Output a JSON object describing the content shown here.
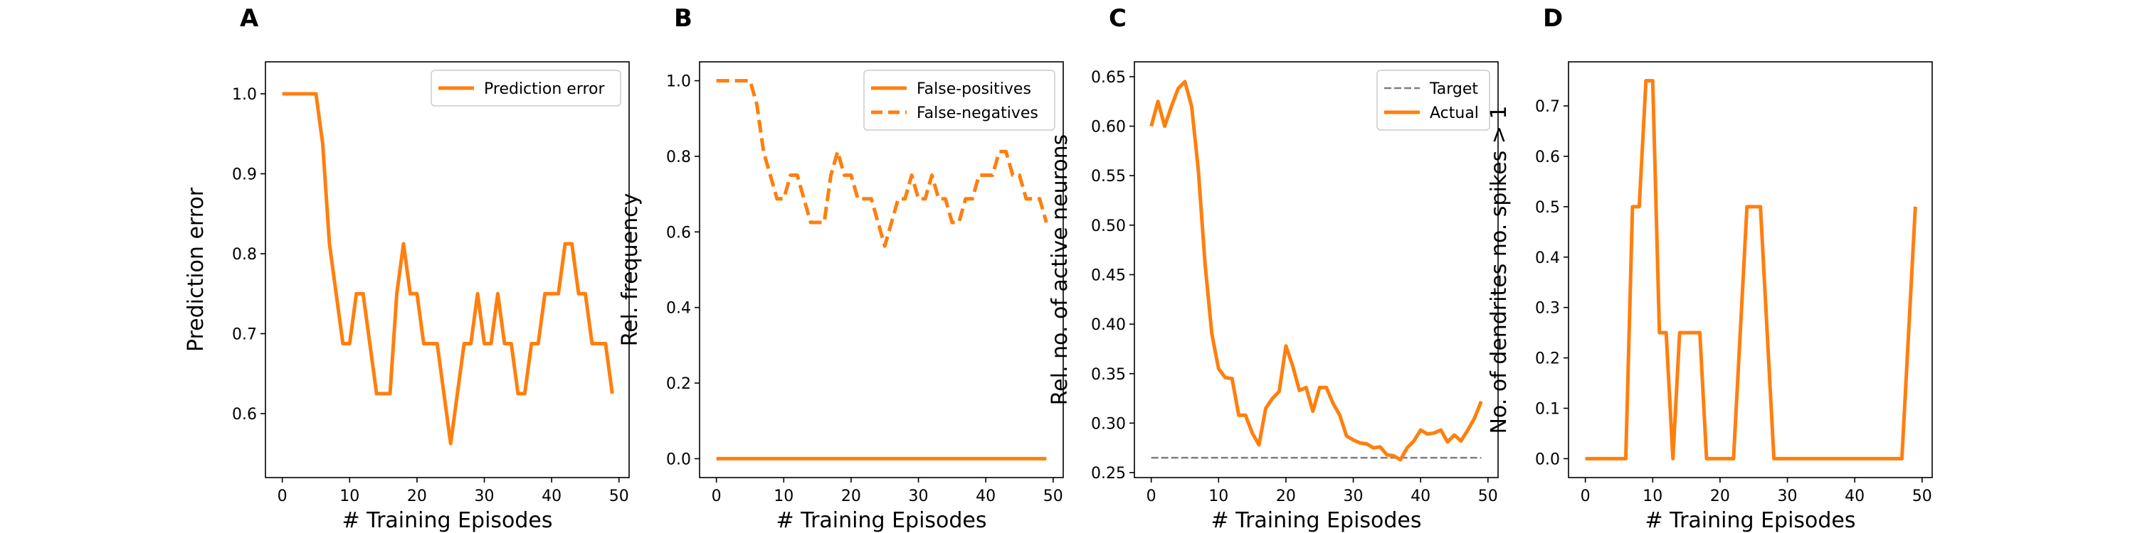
{
  "figure": {
    "panel_count": 4
  },
  "chart_data": [
    {
      "type": "line",
      "panel_letter": "A",
      "xlabel": "# Training Episodes",
      "ylabel": "Prediction error",
      "xlim": [
        -2.5,
        51.5
      ],
      "ylim": [
        0.52,
        1.04
      ],
      "xticks": [
        0,
        10,
        20,
        30,
        40,
        50
      ],
      "xtick_labels": [
        "0",
        "10",
        "20",
        "30",
        "40",
        "50"
      ],
      "yticks": [
        0.6,
        0.7,
        0.8,
        0.9,
        1.0
      ],
      "ytick_labels": [
        "0.6",
        "0.7",
        "0.8",
        "0.9",
        "1.0"
      ],
      "grid": false,
      "legend": "top-right",
      "series": [
        {
          "name": "Prediction error",
          "color": "#ff7f0e",
          "style": "solid",
          "x": [
            0,
            1,
            2,
            3,
            4,
            5,
            6,
            7,
            8,
            9,
            10,
            11,
            12,
            13,
            14,
            15,
            16,
            17,
            18,
            19,
            20,
            21,
            22,
            23,
            24,
            25,
            26,
            27,
            28,
            29,
            30,
            31,
            32,
            33,
            34,
            35,
            36,
            37,
            38,
            39,
            40,
            41,
            42,
            43,
            44,
            45,
            46,
            47,
            48,
            49
          ],
          "y": [
            1.0,
            1.0,
            1.0,
            1.0,
            1.0,
            1.0,
            0.9375,
            0.8125,
            0.75,
            0.6875,
            0.6875,
            0.75,
            0.75,
            0.6875,
            0.625,
            0.625,
            0.625,
            0.75,
            0.8125,
            0.75,
            0.75,
            0.6875,
            0.6875,
            0.6875,
            0.625,
            0.5625,
            0.625,
            0.6875,
            0.6875,
            0.75,
            0.6875,
            0.6875,
            0.75,
            0.6875,
            0.6875,
            0.625,
            0.625,
            0.6875,
            0.6875,
            0.75,
            0.75,
            0.75,
            0.8125,
            0.8125,
            0.75,
            0.75,
            0.6875,
            0.6875,
            0.6875,
            0.625
          ]
        }
      ]
    },
    {
      "type": "line",
      "panel_letter": "B",
      "xlabel": "# Training Episodes",
      "ylabel": "Rel. frequency",
      "xlim": [
        -2.5,
        51.5
      ],
      "ylim": [
        -0.05,
        1.05
      ],
      "xticks": [
        0,
        10,
        20,
        30,
        40,
        50
      ],
      "xtick_labels": [
        "0",
        "10",
        "20",
        "30",
        "40",
        "50"
      ],
      "yticks": [
        0.0,
        0.2,
        0.4,
        0.6,
        0.8,
        1.0
      ],
      "ytick_labels": [
        "0.0",
        "0.2",
        "0.4",
        "0.6",
        "0.8",
        "1.0"
      ],
      "grid": false,
      "legend": "top-right",
      "series": [
        {
          "name": "False-positives",
          "color": "#ff7f0e",
          "style": "solid",
          "x": [
            0,
            49
          ],
          "y": [
            0.0,
            0.0
          ]
        },
        {
          "name": "False-negatives",
          "color": "#ff7f0e",
          "style": "dashed",
          "x": [
            0,
            1,
            2,
            3,
            4,
            5,
            6,
            7,
            8,
            9,
            10,
            11,
            12,
            13,
            14,
            15,
            16,
            17,
            18,
            19,
            20,
            21,
            22,
            23,
            24,
            25,
            26,
            27,
            28,
            29,
            30,
            31,
            32,
            33,
            34,
            35,
            36,
            37,
            38,
            39,
            40,
            41,
            42,
            43,
            44,
            45,
            46,
            47,
            48,
            49
          ],
          "y": [
            1.0,
            1.0,
            1.0,
            1.0,
            1.0,
            1.0,
            0.9375,
            0.8125,
            0.75,
            0.6875,
            0.6875,
            0.75,
            0.75,
            0.6875,
            0.625,
            0.625,
            0.625,
            0.75,
            0.8125,
            0.75,
            0.75,
            0.6875,
            0.6875,
            0.6875,
            0.625,
            0.5625,
            0.625,
            0.6875,
            0.6875,
            0.75,
            0.6875,
            0.6875,
            0.75,
            0.6875,
            0.6875,
            0.625,
            0.625,
            0.6875,
            0.6875,
            0.75,
            0.75,
            0.75,
            0.8125,
            0.8125,
            0.75,
            0.75,
            0.6875,
            0.6875,
            0.6875,
            0.625
          ]
        }
      ]
    },
    {
      "type": "line",
      "panel_letter": "C",
      "xlabel": "# Training Episodes",
      "ylabel": "Rel. no. of active neurons",
      "xlim": [
        -2.5,
        51.5
      ],
      "ylim": [
        0.245,
        0.665
      ],
      "xticks": [
        0,
        10,
        20,
        30,
        40,
        50
      ],
      "xtick_labels": [
        "0",
        "10",
        "20",
        "30",
        "40",
        "50"
      ],
      "yticks": [
        0.25,
        0.3,
        0.35,
        0.4,
        0.45,
        0.5,
        0.55,
        0.6,
        0.65
      ],
      "ytick_labels": [
        "0.25",
        "0.30",
        "0.35",
        "0.40",
        "0.45",
        "0.50",
        "0.55",
        "0.60",
        "0.65"
      ],
      "grid": false,
      "legend": "top-right",
      "series": [
        {
          "name": "Target",
          "color": "#7f7f7f",
          "style": "dashed",
          "x": [
            0,
            49
          ],
          "y": [
            0.265,
            0.265
          ]
        },
        {
          "name": "Actual",
          "color": "#ff7f0e",
          "style": "solid",
          "x": [
            0,
            1,
            2,
            3,
            4,
            5,
            6,
            7,
            8,
            9,
            10,
            11,
            12,
            13,
            14,
            15,
            16,
            17,
            18,
            19,
            20,
            21,
            22,
            23,
            24,
            25,
            26,
            27,
            28,
            29,
            30,
            31,
            32,
            33,
            34,
            35,
            36,
            37,
            38,
            39,
            40,
            41,
            42,
            43,
            44,
            45,
            46,
            47,
            48,
            49
          ],
          "y": [
            0.6,
            0.625,
            0.6,
            0.62,
            0.638,
            0.645,
            0.62,
            0.555,
            0.46,
            0.39,
            0.355,
            0.346,
            0.345,
            0.308,
            0.308,
            0.29,
            0.278,
            0.315,
            0.325,
            0.332,
            0.378,
            0.358,
            0.333,
            0.336,
            0.312,
            0.336,
            0.336,
            0.32,
            0.308,
            0.287,
            0.283,
            0.28,
            0.279,
            0.275,
            0.276,
            0.268,
            0.267,
            0.263,
            0.275,
            0.282,
            0.293,
            0.289,
            0.29,
            0.293,
            0.281,
            0.288,
            0.282,
            0.293,
            0.305,
            0.322
          ]
        }
      ]
    },
    {
      "type": "line",
      "panel_letter": "D",
      "xlabel": "# Training Episodes",
      "ylabel": "No. of dendrites no. spikes > 1",
      "xlim": [
        -2.5,
        51.5
      ],
      "ylim": [
        -0.0375,
        0.7875
      ],
      "xticks": [
        0,
        10,
        20,
        30,
        40,
        50
      ],
      "xtick_labels": [
        "0",
        "10",
        "20",
        "30",
        "40",
        "50"
      ],
      "yticks": [
        0.0,
        0.1,
        0.2,
        0.3,
        0.4,
        0.5,
        0.6,
        0.7
      ],
      "ytick_labels": [
        "0.0",
        "0.1",
        "0.2",
        "0.3",
        "0.4",
        "0.5",
        "0.6",
        "0.7"
      ],
      "grid": false,
      "legend": "none",
      "series": [
        {
          "color": "#ff7f0e",
          "style": "solid",
          "x": [
            0,
            1,
            2,
            3,
            4,
            5,
            6,
            7,
            8,
            9,
            10,
            11,
            12,
            13,
            14,
            15,
            16,
            17,
            18,
            19,
            20,
            21,
            22,
            23,
            24,
            25,
            26,
            27,
            28,
            29,
            30,
            31,
            32,
            33,
            34,
            35,
            36,
            37,
            38,
            39,
            40,
            41,
            42,
            43,
            44,
            45,
            46,
            47,
            48,
            49
          ],
          "y": [
            0,
            0,
            0,
            0,
            0,
            0,
            0,
            0.5,
            0.5,
            0.75,
            0.75,
            0.25,
            0.25,
            0,
            0.25,
            0.25,
            0.25,
            0.25,
            0,
            0,
            0,
            0,
            0,
            0.25,
            0.5,
            0.5,
            0.5,
            0.25,
            0,
            0,
            0,
            0,
            0,
            0,
            0,
            0,
            0,
            0,
            0,
            0,
            0,
            0,
            0,
            0,
            0,
            0,
            0,
            0,
            0.25,
            0.5
          ]
        }
      ]
    }
  ]
}
